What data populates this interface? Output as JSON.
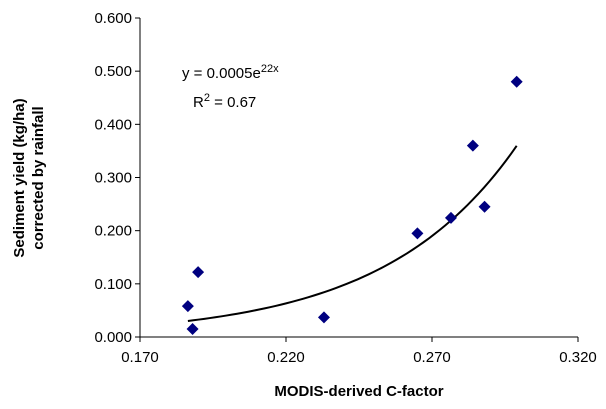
{
  "chart_data": {
    "type": "scatter",
    "x_label": "MODIS-derived C-factor",
    "y_label": [
      "Sediment yield (kg/ha)",
      "corrected by rainfall"
    ],
    "x": [
      0.1864,
      0.188,
      0.1899,
      0.233,
      0.265,
      0.2765,
      0.284,
      0.288,
      0.299
    ],
    "series": [
      {
        "name": "Sediment yield",
        "color": "#000080",
        "values": [
          0.058,
          0.015,
          0.122,
          0.037,
          0.195,
          0.224,
          0.36,
          0.245,
          0.48
        ]
      }
    ],
    "xlim": [
      0.17,
      0.32
    ],
    "xticks": [
      {
        "value": 0.17,
        "label": "0.170"
      },
      {
        "value": 0.22,
        "label": "0.220"
      },
      {
        "value": 0.27,
        "label": "0.270"
      },
      {
        "value": 0.32,
        "label": "0.320"
      }
    ],
    "ylim": [
      0,
      0.6
    ],
    "yticks": [
      {
        "value": 0,
        "label": "0.000"
      },
      {
        "value": 0.1,
        "label": "0.100"
      },
      {
        "value": 0.2,
        "label": "0.200"
      },
      {
        "value": 0.3,
        "label": "0.300"
      },
      {
        "value": 0.4,
        "label": "0.400"
      },
      {
        "value": 0.5,
        "label": "0.500"
      },
      {
        "value": 0.6,
        "label": "0.600"
      }
    ],
    "trendline": {
      "type": "exponential",
      "a": 0.0005,
      "b": 22,
      "color": "#000000",
      "equation": [
        "y = 0.0005e",
        "22x"
      ],
      "r_squared": [
        "R",
        "2",
        " = 0.67"
      ]
    }
  }
}
